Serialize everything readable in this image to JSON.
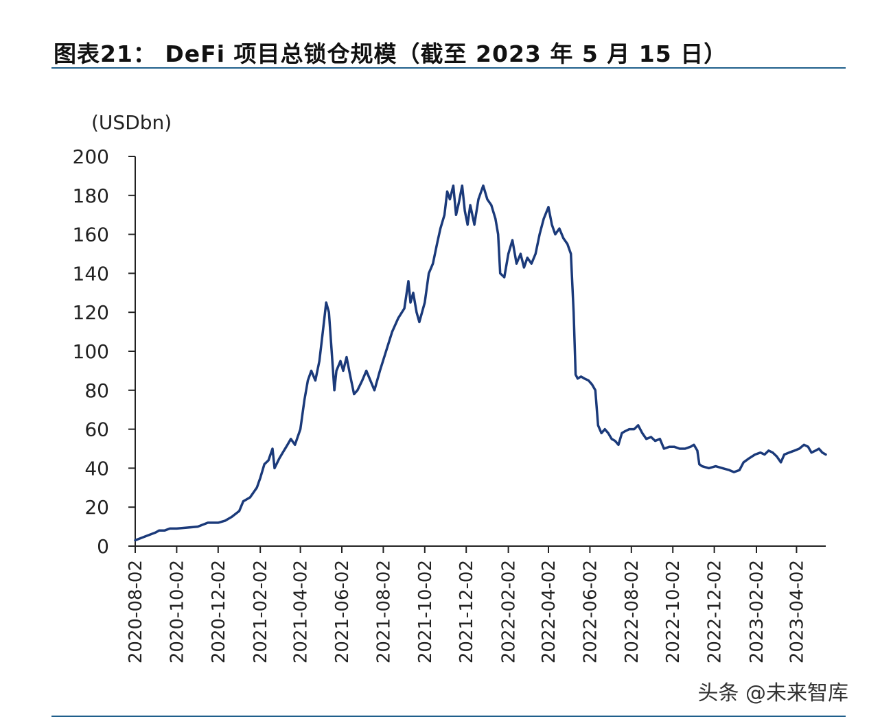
{
  "title": "图表21： DeFi 项目总锁仓规模（截至 2023 年 5 月 15 日）",
  "watermark": "头条 @未来智库",
  "chart_data": {
    "type": "line",
    "unit_label": "(USDbn)",
    "ylim": [
      0,
      200
    ],
    "yticks": [
      0,
      20,
      40,
      60,
      80,
      100,
      120,
      140,
      160,
      180,
      200
    ],
    "xlim": [
      "2020-08-02",
      "2023-05-15"
    ],
    "xticks": [
      "2020-08-02",
      "2020-10-02",
      "2020-12-02",
      "2021-02-02",
      "2021-04-02",
      "2021-06-02",
      "2021-08-02",
      "2021-10-02",
      "2021-12-02",
      "2022-02-02",
      "2022-04-02",
      "2022-06-02",
      "2022-08-02",
      "2022-10-02",
      "2022-12-02",
      "2023-02-02",
      "2023-04-02"
    ],
    "grid": false,
    "line_color": "#1b3a7a",
    "series": [
      {
        "name": "",
        "points": [
          [
            "2020-08-02",
            3
          ],
          [
            "2020-08-17",
            5
          ],
          [
            "2020-09-01",
            7
          ],
          [
            "2020-09-06",
            8
          ],
          [
            "2020-09-14",
            8
          ],
          [
            "2020-09-22",
            9
          ],
          [
            "2020-10-02",
            9
          ],
          [
            "2020-10-18",
            9.5
          ],
          [
            "2020-11-02",
            10
          ],
          [
            "2020-11-17",
            12
          ],
          [
            "2020-12-02",
            12
          ],
          [
            "2020-12-12",
            13
          ],
          [
            "2020-12-22",
            15
          ],
          [
            "2021-01-02",
            18
          ],
          [
            "2021-01-08",
            23
          ],
          [
            "2021-01-18",
            25
          ],
          [
            "2021-01-28",
            30
          ],
          [
            "2021-02-02",
            35
          ],
          [
            "2021-02-08",
            42
          ],
          [
            "2021-02-14",
            44
          ],
          [
            "2021-02-20",
            50
          ],
          [
            "2021-02-23",
            40
          ],
          [
            "2021-03-02",
            45
          ],
          [
            "2021-03-07",
            48
          ],
          [
            "2021-03-14",
            52
          ],
          [
            "2021-03-19",
            55
          ],
          [
            "2021-03-25",
            52
          ],
          [
            "2021-04-02",
            60
          ],
          [
            "2021-04-08",
            75
          ],
          [
            "2021-04-13",
            85
          ],
          [
            "2021-04-18",
            90
          ],
          [
            "2021-04-24",
            85
          ],
          [
            "2021-04-30",
            95
          ],
          [
            "2021-05-05",
            110
          ],
          [
            "2021-05-10",
            125
          ],
          [
            "2021-05-14",
            120
          ],
          [
            "2021-05-18",
            100
          ],
          [
            "2021-05-22",
            80
          ],
          [
            "2021-05-25",
            90
          ],
          [
            "2021-05-31",
            95
          ],
          [
            "2021-06-04",
            90
          ],
          [
            "2021-06-09",
            97
          ],
          [
            "2021-06-14",
            88
          ],
          [
            "2021-06-20",
            78
          ],
          [
            "2021-06-25",
            80
          ],
          [
            "2021-07-02",
            85
          ],
          [
            "2021-07-08",
            90
          ],
          [
            "2021-07-14",
            85
          ],
          [
            "2021-07-20",
            80
          ],
          [
            "2021-07-28",
            90
          ],
          [
            "2021-08-06",
            100
          ],
          [
            "2021-08-15",
            110
          ],
          [
            "2021-08-24",
            117
          ],
          [
            "2021-09-02",
            122
          ],
          [
            "2021-09-08",
            136
          ],
          [
            "2021-09-11",
            125
          ],
          [
            "2021-09-15",
            130
          ],
          [
            "2021-09-20",
            120
          ],
          [
            "2021-09-24",
            115
          ],
          [
            "2021-10-02",
            125
          ],
          [
            "2021-10-08",
            140
          ],
          [
            "2021-10-14",
            145
          ],
          [
            "2021-10-20",
            155
          ],
          [
            "2021-10-25",
            163
          ],
          [
            "2021-10-31",
            170
          ],
          [
            "2021-11-04",
            182
          ],
          [
            "2021-11-08",
            178
          ],
          [
            "2021-11-13",
            185
          ],
          [
            "2021-11-17",
            170
          ],
          [
            "2021-11-21",
            176
          ],
          [
            "2021-11-26",
            185
          ],
          [
            "2021-11-30",
            172
          ],
          [
            "2021-12-04",
            165
          ],
          [
            "2021-12-08",
            175
          ],
          [
            "2021-12-14",
            165
          ],
          [
            "2021-12-20",
            178
          ],
          [
            "2021-12-27",
            185
          ],
          [
            "2022-01-02",
            178
          ],
          [
            "2022-01-08",
            175
          ],
          [
            "2022-01-14",
            168
          ],
          [
            "2022-01-18",
            160
          ],
          [
            "2022-01-21",
            140
          ],
          [
            "2022-01-27",
            138
          ],
          [
            "2022-02-02",
            150
          ],
          [
            "2022-02-08",
            157
          ],
          [
            "2022-02-14",
            145
          ],
          [
            "2022-02-20",
            150
          ],
          [
            "2022-02-25",
            143
          ],
          [
            "2022-03-02",
            148
          ],
          [
            "2022-03-08",
            145
          ],
          [
            "2022-03-14",
            150
          ],
          [
            "2022-03-20",
            160
          ],
          [
            "2022-03-26",
            168
          ],
          [
            "2022-04-02",
            174
          ],
          [
            "2022-04-07",
            165
          ],
          [
            "2022-04-12",
            160
          ],
          [
            "2022-04-18",
            163
          ],
          [
            "2022-04-24",
            158
          ],
          [
            "2022-04-30",
            155
          ],
          [
            "2022-05-05",
            150
          ],
          [
            "2022-05-09",
            120
          ],
          [
            "2022-05-12",
            88
          ],
          [
            "2022-05-15",
            86
          ],
          [
            "2022-05-20",
            87
          ],
          [
            "2022-05-25",
            86
          ],
          [
            "2022-05-31",
            85
          ],
          [
            "2022-06-05",
            83
          ],
          [
            "2022-06-10",
            80
          ],
          [
            "2022-06-14",
            62
          ],
          [
            "2022-06-19",
            58
          ],
          [
            "2022-06-24",
            60
          ],
          [
            "2022-06-29",
            58
          ],
          [
            "2022-07-04",
            55
          ],
          [
            "2022-07-09",
            54
          ],
          [
            "2022-07-14",
            52
          ],
          [
            "2022-07-19",
            58
          ],
          [
            "2022-07-24",
            59
          ],
          [
            "2022-07-30",
            60
          ],
          [
            "2022-08-06",
            60
          ],
          [
            "2022-08-12",
            62
          ],
          [
            "2022-08-18",
            58
          ],
          [
            "2022-08-24",
            55
          ],
          [
            "2022-08-31",
            56
          ],
          [
            "2022-09-06",
            54
          ],
          [
            "2022-09-13",
            55
          ],
          [
            "2022-09-19",
            50
          ],
          [
            "2022-09-27",
            51
          ],
          [
            "2022-10-04",
            51
          ],
          [
            "2022-10-12",
            50
          ],
          [
            "2022-10-20",
            50
          ],
          [
            "2022-10-28",
            51
          ],
          [
            "2022-11-02",
            52
          ],
          [
            "2022-11-07",
            49
          ],
          [
            "2022-11-10",
            42
          ],
          [
            "2022-11-14",
            41
          ],
          [
            "2022-11-24",
            40
          ],
          [
            "2022-12-04",
            41
          ],
          [
            "2022-12-14",
            40
          ],
          [
            "2022-12-24",
            39
          ],
          [
            "2022-12-31",
            38
          ],
          [
            "2023-01-08",
            39
          ],
          [
            "2023-01-14",
            43
          ],
          [
            "2023-01-22",
            45
          ],
          [
            "2023-01-31",
            47
          ],
          [
            "2023-02-08",
            48
          ],
          [
            "2023-02-14",
            47
          ],
          [
            "2023-02-20",
            49
          ],
          [
            "2023-02-26",
            48
          ],
          [
            "2023-03-04",
            46
          ],
          [
            "2023-03-10",
            43
          ],
          [
            "2023-03-15",
            47
          ],
          [
            "2023-03-22",
            48
          ],
          [
            "2023-03-30",
            49
          ],
          [
            "2023-04-06",
            50
          ],
          [
            "2023-04-13",
            52
          ],
          [
            "2023-04-19",
            51
          ],
          [
            "2023-04-24",
            48
          ],
          [
            "2023-04-30",
            49
          ],
          [
            "2023-05-05",
            50
          ],
          [
            "2023-05-10",
            48
          ],
          [
            "2023-05-15",
            47
          ]
        ]
      }
    ]
  }
}
